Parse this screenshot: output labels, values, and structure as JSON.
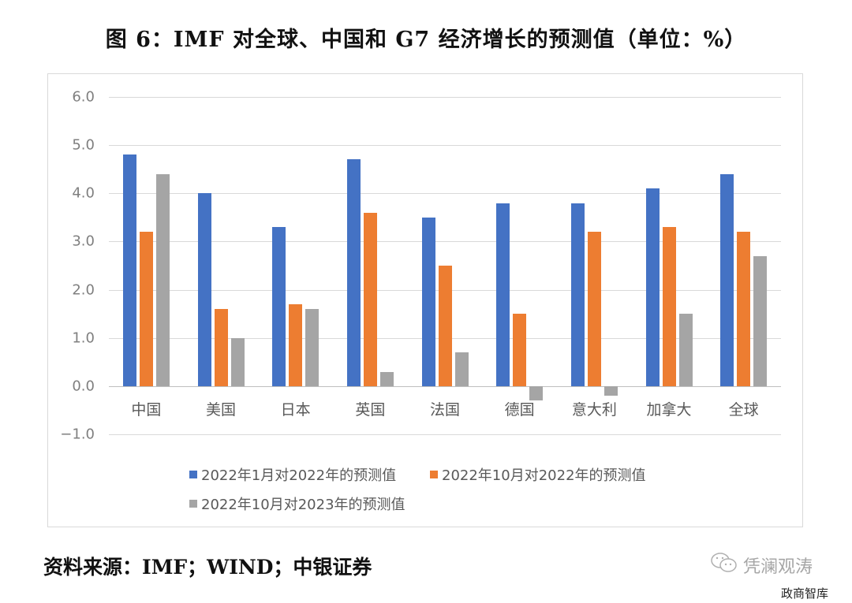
{
  "title": "图 6：IMF 对全球、中国和 G7 经济增长的预测值（单位：%）",
  "source": "资料来源：IMF；WIND；中银证券",
  "watermark": {
    "brand": "凭澜观涛",
    "icon": "wechat-icon",
    "corner": "政商智库"
  },
  "chart_data": {
    "type": "bar",
    "title": "IMF 对全球、中国和 G7 经济增长的预测值（单位：%）",
    "xlabel": "",
    "ylabel": "%",
    "ylim": [
      -1.0,
      6.0
    ],
    "yticks": [
      "6.0",
      "5.0",
      "4.0",
      "3.0",
      "2.0",
      "1.0",
      "0.0",
      "-1.0"
    ],
    "grid": true,
    "legend_position": "bottom",
    "categories": [
      "中国",
      "美国",
      "日本",
      "英国",
      "法国",
      "德国",
      "意大利",
      "加拿大",
      "全球"
    ],
    "series": [
      {
        "name": "2022年1月对2022年的预测值",
        "color": "#4472C4",
        "values": [
          4.8,
          4.0,
          3.3,
          4.7,
          3.5,
          3.8,
          3.8,
          4.1,
          4.4
        ]
      },
      {
        "name": "2022年10月对2022年的预测值",
        "color": "#ED7D31",
        "values": [
          3.2,
          1.6,
          1.7,
          3.6,
          2.5,
          1.5,
          3.2,
          3.3,
          3.2
        ]
      },
      {
        "name": "2022年10月对2023年的预测值",
        "color": "#A5A5A5",
        "values": [
          4.4,
          1.0,
          1.6,
          0.3,
          0.7,
          -0.3,
          -0.2,
          1.5,
          2.7
        ]
      }
    ]
  }
}
